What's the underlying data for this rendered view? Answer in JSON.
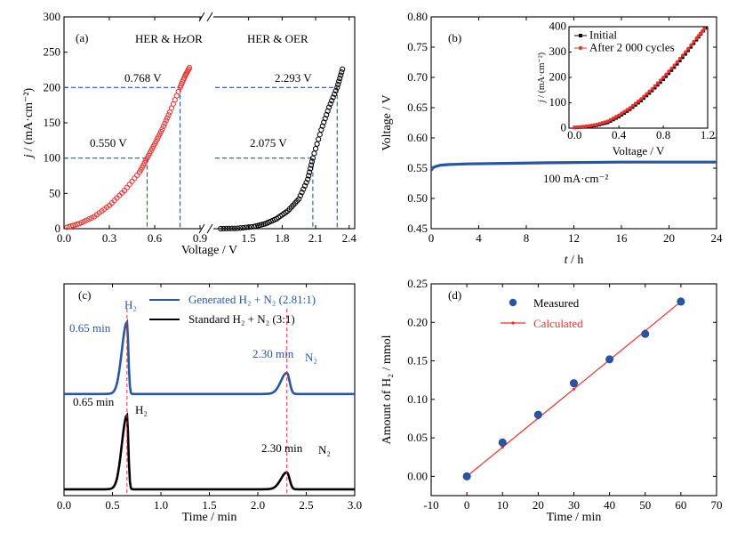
{
  "chart_data": [
    {
      "panel": "(a)",
      "type": "scatter",
      "xlabel": "Voltage / V",
      "ylabel": "j / (mA·cm⁻²)",
      "ylim": [
        0,
        300
      ],
      "yticks": [
        0,
        50,
        100,
        150,
        200,
        250,
        300
      ],
      "xaxis_break": true,
      "segments": [
        {
          "xlim": [
            0.0,
            0.9
          ],
          "xticks": [
            0.0,
            0.3,
            0.6,
            0.9
          ]
        },
        {
          "xlim": [
            1.2,
            2.45
          ],
          "xticks": [
            1.5,
            1.8,
            2.1,
            2.4
          ]
        }
      ],
      "series": [
        {
          "label": "HER & HzOR",
          "color": "#e8332f",
          "marker": "open-circle",
          "x": [
            0.02,
            0.1,
            0.2,
            0.3,
            0.4,
            0.5,
            0.55,
            0.6,
            0.65,
            0.7,
            0.768,
            0.8,
            0.83
          ],
          "y": [
            2,
            7,
            17,
            33,
            54,
            80,
            100,
            120,
            141,
            165,
            200,
            216,
            228
          ]
        },
        {
          "label": "HER & OER",
          "color": "#000000",
          "marker": "open-circle",
          "x": [
            1.25,
            1.4,
            1.55,
            1.65,
            1.75,
            1.85,
            1.95,
            2.03,
            2.075,
            2.15,
            2.22,
            2.293,
            2.34
          ],
          "y": [
            0,
            0.5,
            3,
            7,
            14,
            25,
            42,
            70,
            100,
            140,
            172,
            200,
            226
          ]
        }
      ],
      "reference_lines": [
        {
          "y": 200,
          "x_end": 0.768,
          "label": "0.768 V",
          "segment": 0
        },
        {
          "y": 100,
          "x_end": 0.55,
          "label": "0.550 V",
          "segment": 0
        },
        {
          "y": 200,
          "x_end": 2.293,
          "label": "2.293 V",
          "segment": 1
        },
        {
          "y": 100,
          "x_end": 2.075,
          "label": "2.075 V",
          "segment": 1
        }
      ]
    },
    {
      "panel": "(b)",
      "type": "line",
      "xlabel": "t / h",
      "ylabel": "Voltage / V",
      "xlim": [
        0,
        24
      ],
      "xticks": [
        0,
        4,
        8,
        12,
        16,
        20,
        24
      ],
      "ylim": [
        0.45,
        0.8
      ],
      "yticks": [
        0.45,
        0.5,
        0.55,
        0.6,
        0.65,
        0.7,
        0.75,
        0.8
      ],
      "series": [
        {
          "name": "",
          "color": "#2756a5",
          "x": [
            0,
            0.15,
            0.4,
            0.8,
            1.5,
            3,
            6,
            10,
            16,
            24
          ],
          "y": [
            0.546,
            0.551,
            0.553,
            0.555,
            0.556,
            0.557,
            0.558,
            0.559,
            0.56,
            0.56
          ]
        }
      ],
      "annotation": "100 mA·cm⁻²",
      "inset": {
        "type": "line",
        "xlabel": "Voltage / V",
        "ylabel": "j / (mA·cm⁻²)",
        "xlim": [
          -0.05,
          1.2
        ],
        "xticks": [
          0.0,
          0.4,
          0.8,
          1.2
        ],
        "ylim": [
          0,
          400
        ],
        "yticks": [
          0,
          100,
          200,
          300,
          400
        ],
        "legend_position": "top-left",
        "series": [
          {
            "name": "Initial",
            "color": "#000000",
            "marker": "square",
            "x": [
              0.0,
              0.1,
              0.2,
              0.3,
              0.4,
              0.5,
              0.6,
              0.7,
              0.8,
              0.9,
              1.0,
              1.1,
              1.18
            ],
            "y": [
              2,
              5,
              11,
              22,
              45,
              74,
              108,
              148,
              192,
              240,
              292,
              348,
              395
            ]
          },
          {
            "name": "After 2 000 cycles",
            "color": "#e8332f",
            "marker": "circle",
            "x": [
              0.0,
              0.1,
              0.2,
              0.3,
              0.4,
              0.5,
              0.6,
              0.7,
              0.8,
              0.9,
              1.0,
              1.1,
              1.17
            ],
            "y": [
              3,
              7,
              14,
              27,
              51,
              80,
              115,
              155,
              200,
              248,
              300,
              355,
              392
            ]
          }
        ]
      }
    },
    {
      "panel": "(c)",
      "type": "line",
      "xlabel": "Time / min",
      "xlim": [
        0,
        3.0
      ],
      "xticks": [
        0.0,
        0.5,
        1.0,
        1.5,
        2.0,
        2.5,
        3.0
      ],
      "legend_position": "top-right",
      "series": [
        {
          "name": "Generated H₂ + N₂ (2.81:1)",
          "color": "#2756a5",
          "baseline": 0.48,
          "peaks": [
            {
              "t": 0.65,
              "height": 0.34,
              "width": 0.06
            },
            {
              "t": 2.3,
              "height": 0.1,
              "width": 0.07
            }
          ],
          "peak_labels": [
            "0.65 min",
            "H₂",
            "2.30 min",
            "N₂"
          ]
        },
        {
          "name": "Standard H₂ + N₂ (3:1)",
          "color": "#000000",
          "baseline": 0.03,
          "peaks": [
            {
              "t": 0.65,
              "height": 0.35,
              "width": 0.06
            },
            {
              "t": 2.3,
              "height": 0.08,
              "width": 0.07
            }
          ],
          "peak_labels": [
            "0.65 min",
            "H₂",
            "2.30 min",
            "N₂"
          ]
        }
      ],
      "reference_x": [
        0.65,
        2.3
      ]
    },
    {
      "panel": "(d)",
      "type": "scatter",
      "xlabel": "Time / min",
      "ylabel": "Amount of H₂ / mmol",
      "xlim": [
        -10,
        70
      ],
      "xticks": [
        -10,
        0,
        10,
        20,
        30,
        40,
        50,
        60,
        70
      ],
      "ylim": [
        -0.025,
        0.25
      ],
      "yticks": [
        0.0,
        0.05,
        0.1,
        0.15,
        0.2,
        0.25
      ],
      "legend_position": "top-left",
      "series": [
        {
          "name": "Measured",
          "color": "#2756a5",
          "x": [
            0,
            10,
            20,
            30,
            40,
            50,
            60
          ],
          "y": [
            0.0,
            0.044,
            0.08,
            0.121,
            0.152,
            0.185,
            0.227
          ]
        },
        {
          "name": "Calculated",
          "color": "#e8332f",
          "x": [
            0,
            10,
            20,
            30,
            40,
            50,
            60
          ],
          "y": [
            0.0,
            0.0378,
            0.0756,
            0.1134,
            0.1512,
            0.189,
            0.227
          ]
        }
      ]
    }
  ]
}
